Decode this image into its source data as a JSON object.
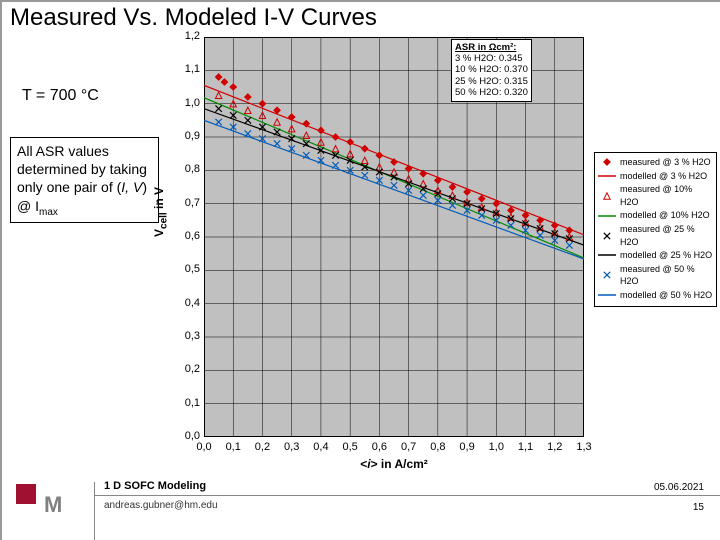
{
  "title": "Measured Vs. Modeled I-V Curves",
  "temperature_label": "T = 700 °C",
  "note_html": "All ASR values determined by taking only one pair of (<i>I, V</i>) @ I<span class=\"sub\">max</span>",
  "chart": {
    "type": "scatter+line",
    "background_color": "#c0c0c0",
    "ylabel_html": "V<sub>cell</sub> in V",
    "xlabel_html": "&lt;<i>i</i>&gt; in A/cm²",
    "xlim": [
      0.0,
      1.3
    ],
    "ylim": [
      0.0,
      1.2
    ],
    "xtick_step": 0.1,
    "ytick_step": 0.1,
    "xtick_labels": [
      "0,0",
      "0,1",
      "0,2",
      "0,3",
      "0,4",
      "0,5",
      "0,6",
      "0,7",
      "0,8",
      "0,9",
      "1,0",
      "1,1",
      "1,2",
      "1,3"
    ],
    "ytick_labels": [
      "0,0",
      "0,1",
      "0,2",
      "0,3",
      "0,4",
      "0,5",
      "0,6",
      "0,7",
      "0,8",
      "0,9",
      "1,0",
      "1,1",
      "1,2"
    ],
    "grid_color": "#000000",
    "label_fontsize": 12,
    "tick_fontsize": 11,
    "measured_series": [
      {
        "id": "meas-3",
        "label": "measured @ 3 % H2O",
        "color": "#d00000",
        "marker": "diamond-filled",
        "data": [
          [
            0.05,
            1.08
          ],
          [
            0.07,
            1.065
          ],
          [
            0.1,
            1.05
          ],
          [
            0.15,
            1.02
          ],
          [
            0.2,
            1.0
          ],
          [
            0.25,
            0.98
          ],
          [
            0.3,
            0.96
          ],
          [
            0.35,
            0.94
          ],
          [
            0.4,
            0.92
          ],
          [
            0.45,
            0.9
          ],
          [
            0.5,
            0.885
          ],
          [
            0.55,
            0.865
          ],
          [
            0.6,
            0.845
          ],
          [
            0.65,
            0.825
          ],
          [
            0.7,
            0.805
          ],
          [
            0.75,
            0.79
          ],
          [
            0.8,
            0.77
          ],
          [
            0.85,
            0.75
          ],
          [
            0.9,
            0.735
          ],
          [
            0.95,
            0.715
          ],
          [
            1.0,
            0.7
          ],
          [
            1.05,
            0.68
          ],
          [
            1.1,
            0.665
          ],
          [
            1.15,
            0.65
          ],
          [
            1.2,
            0.635
          ],
          [
            1.25,
            0.62
          ]
        ]
      },
      {
        "id": "meas-10",
        "label": "measured @ 10% H2O",
        "color": "#d00000",
        "marker": "triangle-open",
        "data": [
          [
            0.05,
            1.025
          ],
          [
            0.1,
            1.0
          ],
          [
            0.15,
            0.98
          ],
          [
            0.2,
            0.965
          ],
          [
            0.25,
            0.945
          ],
          [
            0.3,
            0.925
          ],
          [
            0.35,
            0.905
          ],
          [
            0.4,
            0.885
          ],
          [
            0.45,
            0.865
          ],
          [
            0.5,
            0.85
          ],
          [
            0.55,
            0.83
          ],
          [
            0.6,
            0.81
          ],
          [
            0.65,
            0.795
          ],
          [
            0.7,
            0.775
          ],
          [
            0.75,
            0.76
          ],
          [
            0.8,
            0.74
          ],
          [
            0.85,
            0.725
          ],
          [
            0.9,
            0.705
          ],
          [
            0.95,
            0.69
          ],
          [
            1.0,
            0.675
          ],
          [
            1.05,
            0.66
          ],
          [
            1.1,
            0.645
          ],
          [
            1.15,
            0.63
          ],
          [
            1.2,
            0.615
          ],
          [
            1.25,
            0.6
          ]
        ]
      },
      {
        "id": "meas-25",
        "label": "measured @ 25 % H2O",
        "color": "#000000",
        "marker": "x",
        "data": [
          [
            0.05,
            0.985
          ],
          [
            0.1,
            0.965
          ],
          [
            0.15,
            0.95
          ],
          [
            0.2,
            0.93
          ],
          [
            0.25,
            0.915
          ],
          [
            0.3,
            0.895
          ],
          [
            0.35,
            0.88
          ],
          [
            0.4,
            0.86
          ],
          [
            0.45,
            0.845
          ],
          [
            0.5,
            0.83
          ],
          [
            0.55,
            0.81
          ],
          [
            0.6,
            0.795
          ],
          [
            0.65,
            0.78
          ],
          [
            0.7,
            0.76
          ],
          [
            0.75,
            0.745
          ],
          [
            0.8,
            0.73
          ],
          [
            0.85,
            0.715
          ],
          [
            0.9,
            0.7
          ],
          [
            0.95,
            0.685
          ],
          [
            1.0,
            0.67
          ],
          [
            1.05,
            0.655
          ],
          [
            1.1,
            0.64
          ],
          [
            1.15,
            0.625
          ],
          [
            1.2,
            0.61
          ],
          [
            1.25,
            0.595
          ]
        ]
      },
      {
        "id": "meas-50",
        "label": "measured @ 50 % H2O",
        "color": "#005bbb",
        "marker": "x",
        "data": [
          [
            0.05,
            0.945
          ],
          [
            0.1,
            0.93
          ],
          [
            0.15,
            0.91
          ],
          [
            0.2,
            0.895
          ],
          [
            0.25,
            0.88
          ],
          [
            0.3,
            0.865
          ],
          [
            0.35,
            0.845
          ],
          [
            0.4,
            0.83
          ],
          [
            0.45,
            0.815
          ],
          [
            0.5,
            0.8
          ],
          [
            0.55,
            0.785
          ],
          [
            0.6,
            0.77
          ],
          [
            0.65,
            0.755
          ],
          [
            0.7,
            0.74
          ],
          [
            0.75,
            0.725
          ],
          [
            0.8,
            0.71
          ],
          [
            0.85,
            0.695
          ],
          [
            0.9,
            0.68
          ],
          [
            0.95,
            0.665
          ],
          [
            1.0,
            0.65
          ],
          [
            1.05,
            0.635
          ],
          [
            1.1,
            0.62
          ],
          [
            1.15,
            0.605
          ],
          [
            1.2,
            0.59
          ],
          [
            1.25,
            0.575
          ]
        ]
      }
    ],
    "modeled_series": [
      {
        "id": "mod-3",
        "label": "modelled @ 3 % H2O",
        "color": "#d00000",
        "line_width": 1.2,
        "y0": 1.055,
        "slope": -0.345
      },
      {
        "id": "mod-10",
        "label": "modelled @ 10% H2O",
        "color": "#008c00",
        "line_width": 1.2,
        "y0": 1.018,
        "slope": -0.37
      },
      {
        "id": "mod-25",
        "label": "modelled @ 25 % H2O",
        "color": "#000000",
        "line_width": 1.2,
        "y0": 0.985,
        "slope": -0.315
      },
      {
        "id": "mod-50",
        "label": "modelled @ 50 % H2O",
        "color": "#005bbb",
        "line_width": 1.2,
        "y0": 0.95,
        "slope": -0.32
      }
    ],
    "asr_box": {
      "header": "ASR in Ωcm²:",
      "lines": [
        " 3 % H2O: 0.345",
        "10 % H2O: 0.370",
        "25 % H2O: 0.315",
        "50 % H2O: 0.320"
      ],
      "pos_data": {
        "x": 0.845,
        "y": 1.195
      }
    },
    "legend": [
      {
        "type": "marker",
        "marker": "diamond-filled",
        "color": "#d00000",
        "label": "measured @ 3 % H2O"
      },
      {
        "type": "line",
        "color": "#d00000",
        "label": "modelled @ 3 % H2O"
      },
      {
        "type": "marker",
        "marker": "triangle-open",
        "color": "#d00000",
        "label": "measured @ 10% H2O"
      },
      {
        "type": "line",
        "color": "#008c00",
        "label": "modelled @ 10% H2O"
      },
      {
        "type": "marker",
        "marker": "x",
        "color": "#000000",
        "label": "measured @ 25 % H2O"
      },
      {
        "type": "line",
        "color": "#000000",
        "label": "modelled @ 25 % H2O"
      },
      {
        "type": "marker",
        "marker": "x",
        "color": "#005bbb",
        "label": "measured @ 50 % H2O"
      },
      {
        "type": "line",
        "color": "#005bbb",
        "label": "modelled @ 50 % H2O"
      }
    ]
  },
  "footer": {
    "title": "1 D SOFC Modeling",
    "email": "andreas.gubner@hm.edu",
    "date": "05.06.2021",
    "page": "15"
  },
  "logo": {
    "square_color": "#a01030",
    "letter": "M",
    "letter_color": "#808080"
  }
}
